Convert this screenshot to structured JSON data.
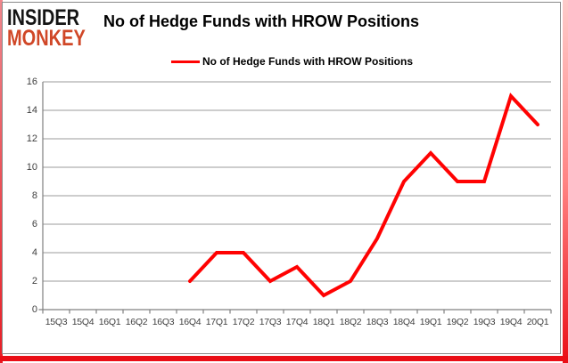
{
  "header": {
    "logo_line1": "INSIDER",
    "logo_line2": "MONKEY",
    "title": "No of Hedge Funds with HROW Positions"
  },
  "legend": {
    "label": "No of Hedge Funds with HROW Positions"
  },
  "chart_data": {
    "type": "line",
    "title": "No of Hedge Funds with HROW Positions",
    "categories": [
      "15Q3",
      "15Q4",
      "16Q1",
      "16Q2",
      "16Q3",
      "16Q4",
      "17Q1",
      "17Q2",
      "17Q3",
      "17Q4",
      "18Q1",
      "18Q2",
      "18Q3",
      "18Q4",
      "19Q1",
      "19Q2",
      "19Q3",
      "19Q4",
      "20Q1"
    ],
    "series": [
      {
        "name": "No of Hedge Funds with HROW Positions",
        "color": "#ff0202",
        "values": [
          null,
          null,
          null,
          null,
          null,
          2,
          4,
          4,
          2,
          3,
          1,
          2,
          5,
          9,
          11,
          9,
          9,
          15,
          13
        ]
      }
    ],
    "xlabel": "",
    "ylabel": "",
    "ylim": [
      0,
      16
    ],
    "ytick_step": 2,
    "grid": true,
    "legend_position": "top"
  },
  "colors": {
    "line_red": "#ff0202",
    "logo_red": "#d04727",
    "gridline": "#9b9b9b",
    "axis": "#808080",
    "axis_text": "#3f3f3f",
    "frame_red": "#ea0e16",
    "frame_pink": "#ffc9c9"
  }
}
